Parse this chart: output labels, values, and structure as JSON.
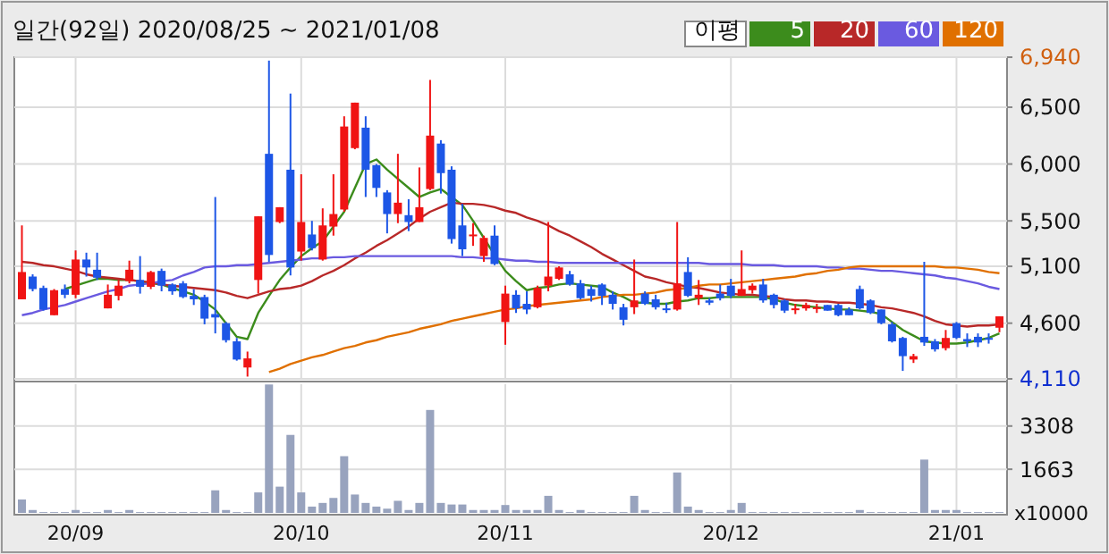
{
  "chart_data": [
    {
      "type": "candlestick",
      "title": "일간(92일) 2020/08/25 ~ 2021/01/08",
      "categories": [
        null,
        null,
        null,
        null,
        null,
        null,
        null,
        null,
        null,
        null,
        null,
        null,
        null,
        null,
        null,
        null,
        null,
        null,
        null,
        null,
        null,
        null,
        null,
        null,
        null,
        null,
        null,
        null,
        null,
        null,
        null,
        null,
        null,
        null,
        null,
        null,
        null,
        null,
        null,
        null,
        null,
        null,
        null,
        null,
        null,
        null,
        null,
        null,
        null,
        null,
        null,
        null,
        null,
        null,
        null,
        null,
        null,
        null,
        null,
        null,
        null,
        null,
        null,
        null,
        null,
        null,
        null,
        null,
        null,
        null,
        null,
        null,
        null,
        null,
        null,
        null,
        null,
        null,
        null,
        null,
        null,
        null,
        null,
        null,
        null,
        null,
        null,
        null,
        null,
        null,
        null,
        null
      ],
      "ohlc": [
        [
          4810,
          5460,
          4810,
          5050
        ],
        [
          5010,
          5030,
          4880,
          4900
        ],
        [
          4910,
          4930,
          4710,
          4720
        ],
        [
          4670,
          4900,
          4670,
          4890
        ],
        [
          4900,
          4940,
          4820,
          4850
        ],
        [
          4850,
          5240,
          4820,
          5160
        ],
        [
          5160,
          5220,
          5010,
          5090
        ],
        [
          5070,
          5220,
          4980,
          5000
        ],
        [
          4730,
          4940,
          4730,
          4850
        ],
        [
          4840,
          4980,
          4800,
          4930
        ],
        [
          4970,
          5150,
          4950,
          5070
        ],
        [
          4980,
          5190,
          4860,
          4920
        ],
        [
          4920,
          5060,
          4900,
          5050
        ],
        [
          5060,
          5080,
          4880,
          4930
        ],
        [
          4940,
          4950,
          4850,
          4880
        ],
        [
          4950,
          4970,
          4820,
          4830
        ],
        [
          4840,
          4900,
          4760,
          4810
        ],
        [
          4830,
          4850,
          4590,
          4640
        ],
        [
          4680,
          5710,
          4510,
          4650
        ],
        [
          4600,
          4610,
          4430,
          4450
        ],
        [
          4440,
          4470,
          4270,
          4280
        ],
        [
          4210,
          4350,
          4130,
          4290
        ],
        [
          4980,
          5540,
          4860,
          5540
        ],
        [
          6090,
          6910,
          5140,
          5200
        ],
        [
          5490,
          5620,
          5480,
          5620
        ],
        [
          5950,
          6620,
          5020,
          5090
        ],
        [
          5230,
          5910,
          5150,
          5490
        ],
        [
          5380,
          5500,
          5240,
          5260
        ],
        [
          5160,
          5610,
          5150,
          5460
        ],
        [
          5450,
          5910,
          5370,
          5560
        ],
        [
          5600,
          6420,
          5580,
          6330
        ],
        [
          6140,
          6540,
          6130,
          6540
        ],
        [
          6320,
          6420,
          5710,
          5950
        ],
        [
          5990,
          6000,
          5710,
          5790
        ],
        [
          5750,
          5770,
          5390,
          5560
        ],
        [
          5560,
          6090,
          5480,
          5660
        ],
        [
          5550,
          5690,
          5410,
          5490
        ],
        [
          5490,
          5970,
          5490,
          5620
        ],
        [
          5780,
          6740,
          5770,
          6250
        ],
        [
          6180,
          6210,
          5740,
          5920
        ],
        [
          5950,
          5980,
          5300,
          5340
        ],
        [
          5460,
          5650,
          5190,
          5250
        ],
        [
          5370,
          5480,
          5280,
          5380
        ],
        [
          5190,
          5370,
          5140,
          5350
        ],
        [
          5370,
          5460,
          5110,
          5120
        ],
        [
          4610,
          4930,
          4410,
          4860
        ],
        [
          4850,
          4890,
          4690,
          4730
        ],
        [
          4770,
          4880,
          4680,
          4720
        ],
        [
          4740,
          4930,
          4730,
          4910
        ],
        [
          4930,
          5490,
          4880,
          5010
        ],
        [
          4990,
          5100,
          4980,
          5090
        ],
        [
          5030,
          5060,
          4930,
          4940
        ],
        [
          4950,
          4980,
          4810,
          4820
        ],
        [
          4900,
          4930,
          4790,
          4840
        ],
        [
          4940,
          4950,
          4760,
          4840
        ],
        [
          4850,
          4880,
          4720,
          4770
        ],
        [
          4740,
          4770,
          4580,
          4630
        ],
        [
          4740,
          5160,
          4680,
          4800
        ],
        [
          4860,
          4880,
          4760,
          4770
        ],
        [
          4810,
          4850,
          4720,
          4740
        ],
        [
          4730,
          4780,
          4690,
          4720
        ],
        [
          4720,
          5490,
          4710,
          4950
        ],
        [
          5050,
          5180,
          4830,
          4840
        ],
        [
          4820,
          4980,
          4760,
          4850
        ],
        [
          4800,
          4820,
          4760,
          4780
        ],
        [
          4860,
          4940,
          4800,
          4820
        ],
        [
          4930,
          4990,
          4820,
          4840
        ],
        [
          4840,
          5240,
          4840,
          4900
        ],
        [
          4890,
          4950,
          4860,
          4930
        ],
        [
          4940,
          4990,
          4780,
          4800
        ],
        [
          4850,
          4860,
          4730,
          4760
        ],
        [
          4800,
          4810,
          4690,
          4710
        ],
        [
          4720,
          4770,
          4680,
          4730
        ],
        [
          4730,
          4780,
          4710,
          4760
        ],
        [
          4730,
          4770,
          4690,
          4740
        ],
        [
          4760,
          4760,
          4710,
          4710
        ],
        [
          4760,
          4770,
          4660,
          4670
        ],
        [
          4720,
          4740,
          4670,
          4670
        ],
        [
          4900,
          4930,
          4720,
          4730
        ],
        [
          4800,
          4810,
          4680,
          4690
        ],
        [
          4720,
          4720,
          4590,
          4600
        ],
        [
          4590,
          4610,
          4430,
          4440
        ],
        [
          4470,
          4480,
          4180,
          4310
        ],
        [
          4280,
          4330,
          4250,
          4310
        ],
        [
          4480,
          5140,
          4400,
          4430
        ],
        [
          4440,
          4460,
          4350,
          4370
        ],
        [
          4380,
          4540,
          4360,
          4470
        ],
        [
          4600,
          4610,
          4460,
          4470
        ],
        [
          4460,
          4510,
          4390,
          4440
        ],
        [
          4480,
          4510,
          4390,
          4430
        ],
        [
          4470,
          4510,
          4420,
          4460
        ],
        [
          4560,
          4660,
          4520,
          4660
        ]
      ],
      "series": [
        {
          "type": "line",
          "name": "5",
          "color": "#3c8c1c",
          "values": [
            null,
            null,
            null,
            null,
            4900,
            4930,
            4960,
            4990,
            4990,
            4980,
            4980,
            4970,
            4950,
            4940,
            4910,
            4880,
            4850,
            4790,
            4720,
            4600,
            4480,
            4460,
            4690,
            4840,
            4980,
            5090,
            5190,
            5260,
            5320,
            5450,
            5580,
            5790,
            6000,
            6040,
            5950,
            5870,
            5790,
            5710,
            5750,
            5780,
            5710,
            5640,
            5500,
            5350,
            5200,
            5060,
            4970,
            4890,
            4910,
            4920,
            4940,
            4950,
            4940,
            4930,
            4920,
            4870,
            4830,
            4780,
            4780,
            4770,
            4770,
            4790,
            4800,
            4820,
            4820,
            4830,
            4830,
            4830,
            4830,
            4830,
            4810,
            4780,
            4760,
            4750,
            4740,
            4730,
            4720,
            4720,
            4710,
            4700,
            4680,
            4610,
            4540,
            4490,
            4440,
            4430,
            4420,
            4420,
            4430,
            4450,
            4470,
            4510
          ]
        },
        {
          "type": "line",
          "name": "20",
          "color": "#b82828",
          "values": [
            5140,
            5130,
            5110,
            5100,
            5080,
            5060,
            5030,
            5010,
            5000,
            4990,
            4980,
            4970,
            4960,
            4940,
            4930,
            4920,
            4910,
            4900,
            4890,
            4870,
            4840,
            4820,
            4850,
            4880,
            4900,
            4910,
            4930,
            4970,
            5020,
            5060,
            5110,
            5170,
            5220,
            5280,
            5330,
            5390,
            5450,
            5520,
            5580,
            5620,
            5660,
            5650,
            5650,
            5640,
            5620,
            5590,
            5570,
            5530,
            5500,
            5460,
            5410,
            5370,
            5320,
            5270,
            5210,
            5160,
            5110,
            5060,
            5010,
            4990,
            4960,
            4940,
            4920,
            4910,
            4890,
            4870,
            4860,
            4850,
            4850,
            4840,
            4830,
            4810,
            4800,
            4800,
            4790,
            4790,
            4780,
            4780,
            4770,
            4760,
            4740,
            4730,
            4710,
            4690,
            4660,
            4620,
            4590,
            4580,
            4570,
            4580,
            4580,
            4590
          ]
        },
        {
          "type": "line",
          "name": "60",
          "color": "#6a5ae0",
          "values": [
            4670,
            4690,
            4720,
            4740,
            4760,
            4790,
            4820,
            4850,
            4880,
            4900,
            4930,
            4940,
            4950,
            4970,
            4980,
            5020,
            5050,
            5090,
            5100,
            5100,
            5110,
            5110,
            5120,
            5130,
            5140,
            5150,
            5160,
            5170,
            5170,
            5180,
            5180,
            5190,
            5190,
            5190,
            5190,
            5190,
            5190,
            5190,
            5190,
            5190,
            5190,
            5180,
            5180,
            5170,
            5170,
            5160,
            5150,
            5150,
            5140,
            5140,
            5130,
            5130,
            5130,
            5130,
            5130,
            5130,
            5130,
            5130,
            5130,
            5130,
            5130,
            5130,
            5130,
            5130,
            5120,
            5120,
            5120,
            5120,
            5110,
            5110,
            5110,
            5100,
            5100,
            5100,
            5100,
            5090,
            5090,
            5080,
            5080,
            5070,
            5060,
            5060,
            5050,
            5040,
            5030,
            5020,
            5000,
            4990,
            4970,
            4950,
            4920,
            4900
          ]
        },
        {
          "type": "line",
          "name": "120",
          "color": "#e07000",
          "values": [
            null,
            null,
            null,
            null,
            null,
            null,
            null,
            null,
            null,
            null,
            null,
            null,
            null,
            null,
            null,
            null,
            null,
            null,
            null,
            null,
            null,
            null,
            null,
            4170,
            4200,
            4240,
            4270,
            4300,
            4320,
            4350,
            4380,
            4400,
            4430,
            4450,
            4480,
            4500,
            4520,
            4550,
            4570,
            4590,
            4620,
            4640,
            4660,
            4680,
            4700,
            4720,
            4730,
            4750,
            4760,
            4770,
            4780,
            4790,
            4800,
            4810,
            4830,
            4840,
            4850,
            4850,
            4860,
            4870,
            4890,
            4900,
            4910,
            4930,
            4940,
            4940,
            4950,
            4960,
            4970,
            4980,
            4990,
            5000,
            5010,
            5030,
            5040,
            5060,
            5070,
            5090,
            5100,
            5100,
            5100,
            5100,
            5100,
            5100,
            5100,
            5100,
            5090,
            5090,
            5080,
            5070,
            5050,
            5040
          ]
        }
      ],
      "ylim": [
        4110,
        6940
      ],
      "yticks": [
        {
          "value": 4110,
          "label": "4,110"
        },
        {
          "value": 4600,
          "label": "4,600"
        },
        {
          "value": 5100,
          "label": "5,100"
        },
        {
          "value": 5500,
          "label": "5,500"
        },
        {
          "value": 6000,
          "label": "6,000"
        },
        {
          "value": 6500,
          "label": "6,500"
        },
        {
          "value": 6940,
          "label": "6,940"
        }
      ],
      "legend": "top right",
      "legend_title": "이평",
      "grid": true,
      "tick_labels": "y"
    },
    {
      "type": "bar",
      "categories": [
        null,
        null,
        null,
        null,
        null,
        "20/09",
        null,
        null,
        null,
        null,
        null,
        null,
        null,
        null,
        null,
        null,
        null,
        null,
        null,
        null,
        null,
        null,
        null,
        null,
        null,
        null,
        "20/10",
        null,
        null,
        null,
        null,
        null,
        null,
        null,
        null,
        null,
        null,
        null,
        null,
        null,
        null,
        null,
        null,
        null,
        null,
        "20/11",
        null,
        null,
        null,
        null,
        null,
        null,
        null,
        null,
        null,
        null,
        null,
        null,
        null,
        null,
        null,
        null,
        null,
        null,
        null,
        null,
        "20/12",
        null,
        null,
        null,
        null,
        null,
        null,
        null,
        null,
        null,
        null,
        null,
        null,
        null,
        null,
        null,
        null,
        null,
        null,
        null,
        null,
        "21/01",
        null,
        null,
        null,
        null
      ],
      "values": [
        510,
        110,
        30,
        30,
        30,
        110,
        30,
        30,
        110,
        30,
        110,
        30,
        30,
        30,
        30,
        30,
        30,
        30,
        860,
        110,
        30,
        30,
        780,
        4890,
        1000,
        2970,
        780,
        240,
        380,
        570,
        2160,
        700,
        380,
        240,
        160,
        460,
        110,
        380,
        3920,
        380,
        320,
        320,
        110,
        110,
        110,
        300,
        110,
        110,
        110,
        650,
        110,
        30,
        110,
        30,
        30,
        30,
        30,
        650,
        110,
        30,
        30,
        1540,
        240,
        110,
        30,
        30,
        110,
        380,
        30,
        30,
        30,
        30,
        30,
        30,
        30,
        30,
        30,
        30,
        110,
        30,
        30,
        30,
        30,
        30,
        2030,
        110,
        110,
        110,
        30,
        30,
        30,
        30
      ],
      "color": "#98a3be",
      "ylim": [
        0,
        4900
      ],
      "yticks": [
        1663,
        3308
      ],
      "ylabel": "x10000",
      "grid": true
    }
  ]
}
